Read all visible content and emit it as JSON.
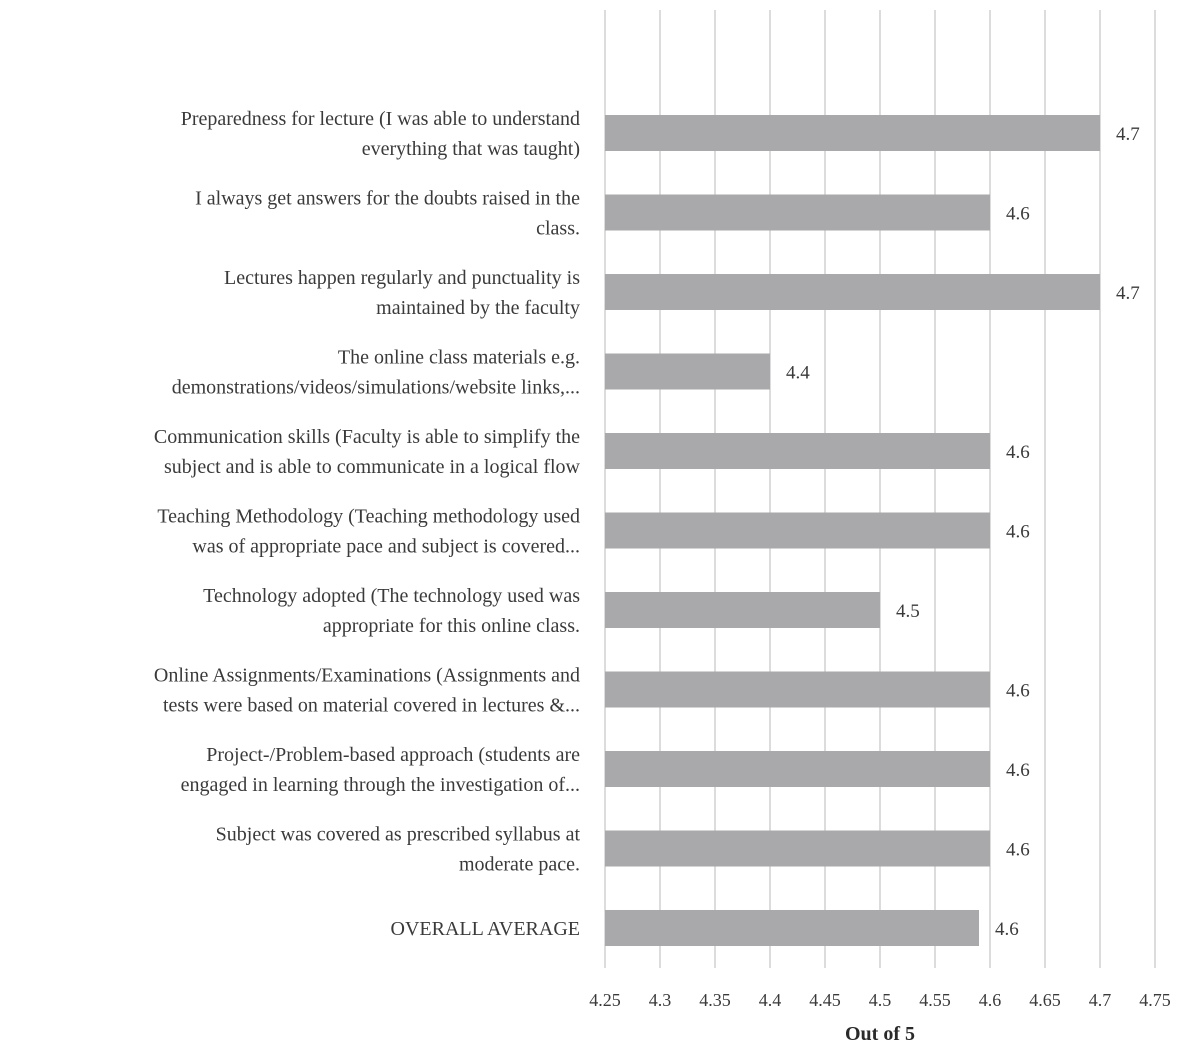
{
  "chart_data": {
    "type": "bar",
    "orientation": "horizontal",
    "title": "",
    "xlabel": "Out of 5",
    "ylabel": "",
    "xlim": [
      4.25,
      4.75
    ],
    "grid": true,
    "legend": "none",
    "bar_color": "#a9a9ab",
    "ticks": [
      "4.25",
      "4.3",
      "4.35",
      "4.4",
      "4.45",
      "4.5",
      "4.55",
      "4.6",
      "4.65",
      "4.7",
      "4.75"
    ],
    "categories": [
      [
        "Preparedness for lecture (I was able to understand",
        "everything that was taught)"
      ],
      [
        "I always get answers for the doubts raised in the",
        "class."
      ],
      [
        "Lectures happen regularly and punctuality is",
        "maintained by the faculty"
      ],
      [
        "The online class materials e.g.",
        "demonstrations/videos/simulations/website  links,..."
      ],
      [
        "Communication skills (Faculty is able to simplify the",
        "subject and is able to communicate in a logical flow"
      ],
      [
        "Teaching Methodology (Teaching methodology used",
        "was of appropriate pace and subject is covered..."
      ],
      [
        "Technology adopted (The technology used was",
        "appropriate for this online class."
      ],
      [
        "Online Assignments/Examinations (Assignments and",
        "tests were based on material covered in lectures &..."
      ],
      [
        "Project-/Problem-based approach (students are",
        "engaged in learning through the investigation of..."
      ],
      [
        "Subject was covered as prescribed syllabus at",
        "moderate pace."
      ],
      [
        "OVERALL AVERAGE"
      ]
    ],
    "values": [
      4.7,
      4.6,
      4.7,
      4.4,
      4.6,
      4.6,
      4.5,
      4.6,
      4.6,
      4.6,
      4.59
    ],
    "data_labels": [
      "4.7",
      "4.6",
      "4.7",
      "4.4",
      "4.6",
      "4.6",
      "4.5",
      "4.6",
      "4.6",
      "4.6",
      "4.6"
    ]
  }
}
